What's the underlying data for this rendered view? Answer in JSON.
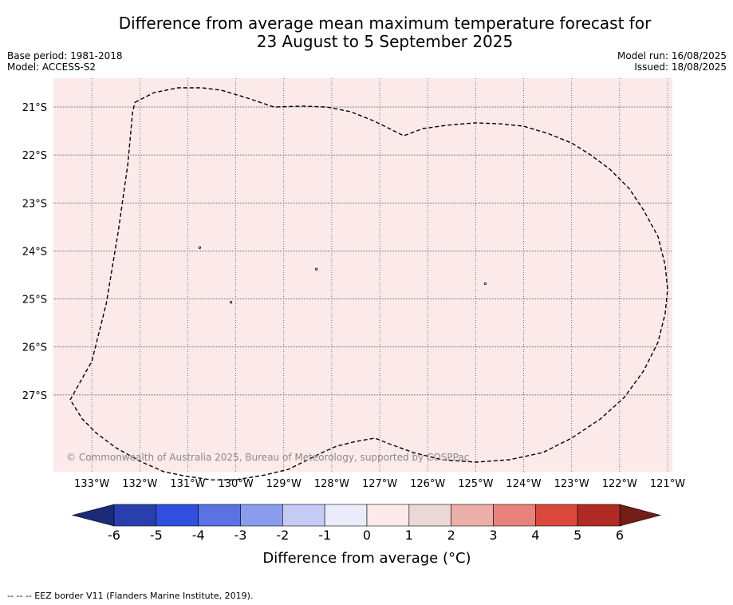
{
  "title_line1": "Difference from average mean maximum temperature forecast for",
  "title_line2": "23 August to 5 September 2025",
  "meta_left": [
    "Base period: 1981-2018",
    "Model: ACCESS-S2"
  ],
  "meta_right": [
    "Model run: 16/08/2025",
    "Issued: 18/08/2025"
  ],
  "map": {
    "lon_ticks": [
      -133,
      -132,
      -131,
      -130,
      -129,
      -128,
      -127,
      -126,
      -125,
      -124,
      -123,
      -122,
      -121
    ],
    "lon_labels": [
      "133°W",
      "132°W",
      "131°W",
      "130°W",
      "129°W",
      "128°W",
      "127°W",
      "126°W",
      "125°W",
      "124°W",
      "123°W",
      "122°W",
      "121°W"
    ],
    "lat_ticks": [
      -21,
      -22,
      -23,
      -24,
      -25,
      -26,
      -27
    ],
    "lat_labels": [
      "21°S",
      "22°S",
      "23°S",
      "24°S",
      "25°S",
      "26°S",
      "27°S"
    ],
    "lon_range": [
      -133.8,
      -120.9
    ],
    "lat_range": [
      -28.6,
      -20.4
    ],
    "fill_color": "#fbeae9",
    "fill_category": "0 to 1",
    "eez_border": [
      [
        -132.1,
        -20.9
      ],
      [
        -131.7,
        -20.7
      ],
      [
        -131.2,
        -20.6
      ],
      [
        -130.7,
        -20.6
      ],
      [
        -130.3,
        -20.65
      ],
      [
        -129.8,
        -20.8
      ],
      [
        -129.2,
        -21.0
      ],
      [
        -128.6,
        -20.98
      ],
      [
        -128.1,
        -21.0
      ],
      [
        -127.6,
        -21.1
      ],
      [
        -127.1,
        -21.3
      ],
      [
        -126.7,
        -21.5
      ],
      [
        -126.5,
        -21.6
      ],
      [
        -126.1,
        -21.45
      ],
      [
        -125.6,
        -21.38
      ],
      [
        -125.0,
        -21.33
      ],
      [
        -124.5,
        -21.35
      ],
      [
        -124.0,
        -21.4
      ],
      [
        -123.5,
        -21.55
      ],
      [
        -123.0,
        -21.75
      ],
      [
        -122.6,
        -22.0
      ],
      [
        -122.2,
        -22.3
      ],
      [
        -121.8,
        -22.7
      ],
      [
        -121.5,
        -23.15
      ],
      [
        -121.2,
        -23.7
      ],
      [
        -121.05,
        -24.3
      ],
      [
        -121.0,
        -24.8
      ],
      [
        -121.05,
        -25.3
      ],
      [
        -121.2,
        -25.9
      ],
      [
        -121.5,
        -26.5
      ],
      [
        -121.9,
        -27.05
      ],
      [
        -122.4,
        -27.5
      ],
      [
        -123.0,
        -27.9
      ],
      [
        -123.6,
        -28.2
      ],
      [
        -124.3,
        -28.35
      ],
      [
        -125.0,
        -28.4
      ],
      [
        -125.7,
        -28.35
      ],
      [
        -126.3,
        -28.2
      ],
      [
        -126.8,
        -28.02
      ],
      [
        -127.1,
        -27.9
      ],
      [
        -127.5,
        -27.97
      ],
      [
        -127.9,
        -28.07
      ],
      [
        -128.2,
        -28.2
      ],
      [
        -128.5,
        -28.35
      ],
      [
        -128.9,
        -28.55
      ],
      [
        -129.4,
        -28.67
      ],
      [
        -130.0,
        -28.77
      ],
      [
        -130.5,
        -28.77
      ],
      [
        -131.0,
        -28.7
      ],
      [
        -131.5,
        -28.6
      ],
      [
        -132.0,
        -28.38
      ],
      [
        -132.5,
        -28.1
      ],
      [
        -132.9,
        -27.8
      ],
      [
        -133.2,
        -27.5
      ],
      [
        -133.45,
        -27.1
      ],
      [
        -133.0,
        -26.3
      ],
      [
        -132.7,
        -25.1
      ],
      [
        -132.45,
        -23.6
      ],
      [
        -132.25,
        -22.2
      ],
      [
        -132.15,
        -21.1
      ],
      [
        -132.1,
        -20.9
      ]
    ],
    "islands": [
      [
        -130.75,
        -23.93
      ],
      [
        -128.32,
        -24.38
      ],
      [
        -124.8,
        -24.68
      ],
      [
        -130.1,
        -25.07
      ]
    ],
    "copyright": "© Commonwealth of Australia 2025, Bureau of Meteorology, supported by COSPPac",
    "border_color": "#000000",
    "grid_color": "#555555"
  },
  "colorbar": {
    "tick_labels": [
      "-6",
      "-5",
      "-4",
      "-3",
      "-2",
      "-1",
      "0",
      "1",
      "2",
      "3",
      "4",
      "5",
      "6"
    ],
    "colors": [
      "#2a3fae",
      "#314fde",
      "#5a72e2",
      "#8a9ced",
      "#c5cbf5",
      "#eaecfb",
      "#fbeae9",
      "#ead7d6",
      "#ecaea9",
      "#e7837b",
      "#d9483b",
      "#b02b23"
    ],
    "under_color": "#1a2b78",
    "over_color": "#741d17",
    "label": "Difference from average (°C)"
  },
  "footnote": "--  --  -- EEZ border V11 (Flanders Marine Institute, 2019)."
}
